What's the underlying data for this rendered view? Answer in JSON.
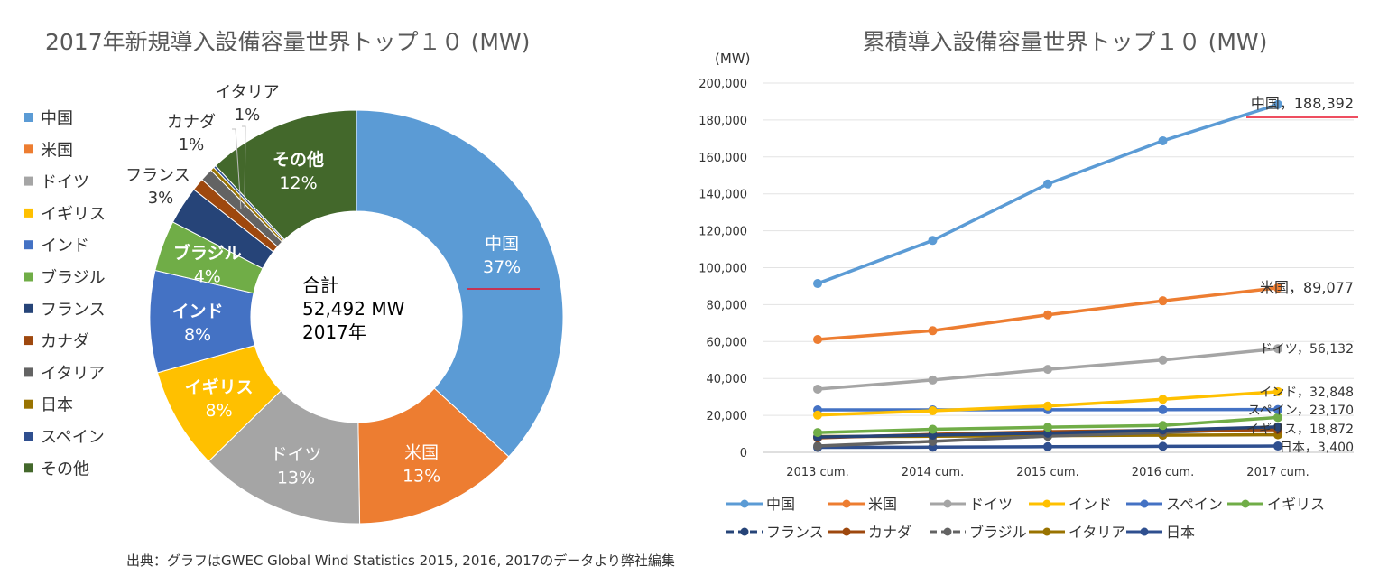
{
  "source_note": "出典：グラフはGWEC Global Wind Statistics 2015, 2016, 2017のデータより弊社編集",
  "colors": {
    "china": "#5B9BD5",
    "usa": "#ED7D31",
    "germany": "#A5A5A5",
    "uk_yellow": "#FFC000",
    "india_blue": "#4472C4",
    "brazil_green": "#70AD47",
    "france": "#264478",
    "canada": "#9E480E",
    "italy": "#636363",
    "japan": "#997300",
    "spain": "#2F4F8F",
    "other": "#43682B",
    "annotation_red": "#E8132B"
  },
  "chart_data": [
    {
      "type": "pie",
      "style": "donut",
      "title": "2017年新規導入設備容量世界トップ１０ (MW)",
      "center_label": [
        "合計",
        "52,492 MW",
        "2017年"
      ],
      "legend_position": "left",
      "slices": [
        {
          "label": "中国",
          "percent": 37,
          "value_label": "37%",
          "color": "#5B9BD5"
        },
        {
          "label": "米国",
          "percent": 13,
          "value_label": "13%",
          "color": "#ED7D31"
        },
        {
          "label": "ドイツ",
          "percent": 13,
          "value_label": "13%",
          "color": "#A5A5A5"
        },
        {
          "label": "イギリス",
          "percent": 8,
          "value_label": "8%",
          "color": "#FFC000"
        },
        {
          "label": "インド",
          "percent": 8,
          "value_label": "8%",
          "color": "#4472C4"
        },
        {
          "label": "ブラジル",
          "percent": 4,
          "value_label": "4%",
          "color": "#70AD47"
        },
        {
          "label": "フランス",
          "percent": 3,
          "value_label": "3%",
          "color": "#264478"
        },
        {
          "label": "カナダ",
          "percent": 1,
          "value_label": "1%",
          "color": "#9E480E"
        },
        {
          "label": "イタリア",
          "percent": 1,
          "value_label": "1%",
          "color": "#636363"
        },
        {
          "label": "日本",
          "percent": 0.3,
          "value_label": "",
          "color": "#997300"
        },
        {
          "label": "スペイン",
          "percent": 0.2,
          "value_label": "",
          "color": "#2F4F8F"
        },
        {
          "label": "その他",
          "percent": 12,
          "value_label": "12%",
          "color": "#43682B"
        }
      ]
    },
    {
      "type": "line",
      "title": "累積導入設備容量世界トップ１０ (MW)",
      "y_unit": "(MW)",
      "ylim": [
        0,
        200000
      ],
      "y_ticks": [
        0,
        20000,
        40000,
        60000,
        80000,
        100000,
        120000,
        140000,
        160000,
        180000,
        200000
      ],
      "y_tick_labels": [
        "0",
        "20,000",
        "40,000",
        "60,000",
        "80,000",
        "100,000",
        "120,000",
        "140,000",
        "160,000",
        "180,000",
        "200,000"
      ],
      "categories": [
        "2013 cum.",
        "2014 cum.",
        "2015 cum.",
        "2016 cum.",
        "2017 cum."
      ],
      "grid": true,
      "legend_position": "bottom",
      "series": [
        {
          "name": "中国",
          "color": "#5B9BD5",
          "values": [
            91412,
            114763,
            145362,
            168732,
            188392
          ],
          "end_label": "中国，188,392",
          "dashed": false
        },
        {
          "name": "米国",
          "color": "#ED7D31",
          "values": [
            61110,
            65879,
            74471,
            82060,
            89077
          ],
          "end_label": "米国，89,077",
          "dashed": false
        },
        {
          "name": "ドイツ",
          "color": "#A5A5A5",
          "values": [
            34250,
            39165,
            44947,
            50018,
            56132
          ],
          "end_label": "ドイツ，56,132",
          "dashed": false
        },
        {
          "name": "インド",
          "color": "#FFC000",
          "values": [
            20150,
            22465,
            25088,
            28700,
            32848
          ],
          "end_label": "インド，32,848",
          "dashed": false
        },
        {
          "name": "スペイン",
          "color": "#4472C4",
          "values": [
            22959,
            22987,
            23025,
            23075,
            23170
          ],
          "end_label": "スペイン，23,170",
          "dashed": false
        },
        {
          "name": "イギリス",
          "color": "#70AD47",
          "values": [
            10711,
            12440,
            13603,
            14543,
            18872
          ],
          "end_label": "イギリス，18,872",
          "dashed": false
        },
        {
          "name": "フランス",
          "color": "#264478",
          "values": [
            8254,
            9285,
            10358,
            12066,
            13759
          ],
          "end_label": "",
          "dashed": true
        },
        {
          "name": "カナダ",
          "color": "#9E480E",
          "values": [
            7803,
            9694,
            11205,
            11900,
            12239
          ],
          "end_label": "",
          "dashed": false
        },
        {
          "name": "ブラジル",
          "color": "#636363",
          "values": [
            3399,
            5939,
            8715,
            10740,
            12763
          ],
          "end_label": "",
          "dashed": true
        },
        {
          "name": "イタリア",
          "color": "#997300",
          "values": [
            8552,
            8663,
            8958,
            9257,
            9479
          ],
          "end_label": "",
          "dashed": false
        },
        {
          "name": "日本",
          "color": "#2F4F8F",
          "values": [
            2669,
            2789,
            3038,
            3234,
            3400
          ],
          "end_label": "日本，3,400",
          "dashed": false
        }
      ]
    }
  ]
}
